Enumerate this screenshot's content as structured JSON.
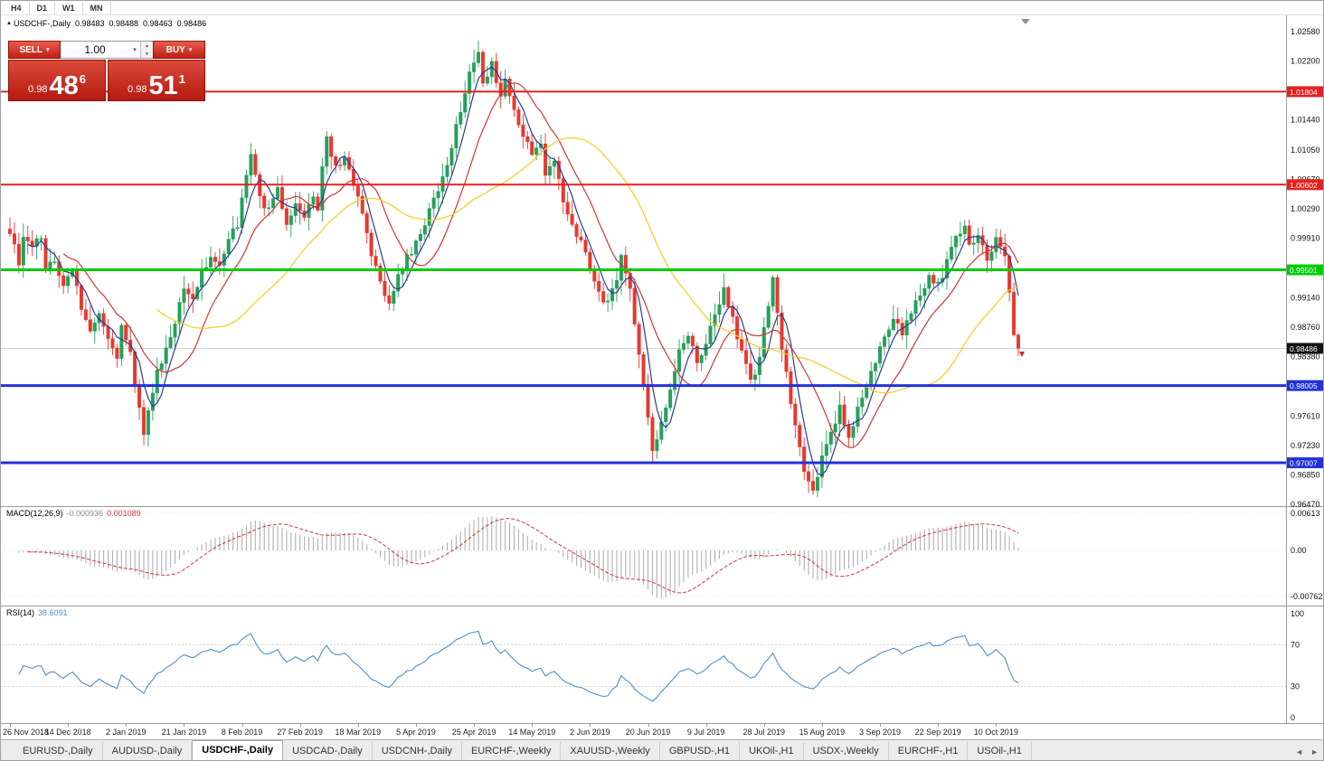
{
  "window": {
    "title": "USDCHF-,Daily"
  },
  "toolbar": {
    "timeframes": [
      "H4",
      "D1",
      "W1",
      "MN"
    ]
  },
  "chart_header": {
    "collapse_icon": "▲",
    "symbol": "USDCHF-,Daily",
    "open": "0.98483",
    "high": "0.98488",
    "low": "0.98463",
    "close": "0.98486"
  },
  "trade_panel": {
    "sell_label": "SELL",
    "buy_label": "BUY",
    "volume": "1.00",
    "sell_price_small": "0.98",
    "sell_price_big": "48",
    "sell_price_sup": "6",
    "buy_price_small": "0.98",
    "buy_price_big": "51",
    "buy_price_sup": "1"
  },
  "price_axis": {
    "ticks": [
      "1.02580",
      "1.02200",
      "1.01440",
      "1.01050",
      "1.00670",
      "1.00290",
      "0.99910",
      "0.99140",
      "0.98760",
      "0.98380",
      "0.97610",
      "0.97230",
      "0.96850",
      "0.96470"
    ]
  },
  "hlines": [
    {
      "label": "1.01804",
      "value": 1.01804,
      "color": "#e52121",
      "width": 2
    },
    {
      "label": "1.00602",
      "value": 1.00602,
      "color": "#e52121",
      "width": 2
    },
    {
      "label": "0.99501",
      "value": 0.99501,
      "color": "#00cc00",
      "width": 3
    },
    {
      "label": "0.98005",
      "value": 0.98005,
      "color": "#2231d8",
      "width": 3
    },
    {
      "label": "0.97007",
      "value": 0.97007,
      "color": "#2231d8",
      "width": 3
    }
  ],
  "current_price": {
    "label": "0.98486",
    "value": 0.98486,
    "bg": "#111111"
  },
  "macd_pane": {
    "label": "MACD(12,26,9)",
    "value1": "-0.000936",
    "value2": "0.001089",
    "axis": [
      "0.00613",
      "0.00",
      "-0.00762"
    ]
  },
  "rsi_pane": {
    "label": "RSI(14)",
    "value": "38.6091",
    "axis": [
      "100",
      "70",
      "30",
      "0"
    ],
    "levels": [
      70,
      30
    ]
  },
  "date_axis": {
    "labels": [
      "26 Nov 2018",
      "14 Dec 2018",
      "2 Jan 2019",
      "21 Jan 2019",
      "8 Feb 2019",
      "27 Feb 2019",
      "18 Mar 2019",
      "5 Apr 2019",
      "25 Apr 2019",
      "14 May 2019",
      "2 Jun 2019",
      "20 Jun 2019",
      "9 Jul 2019",
      "28 Jul 2019",
      "15 Aug 2019",
      "3 Sep 2019",
      "22 Sep 2019",
      "10 Oct 2019"
    ]
  },
  "tabs": {
    "items": [
      "EURUSD-,Daily",
      "AUDUSD-,Daily",
      "USDCHF-,Daily",
      "USDCAD-,Daily",
      "USDCNH-,Daily",
      "EURCHF-,Weekly",
      "XAUUSD-,Weekly",
      "GBPUSD-,H1",
      "UKOil-,H1",
      "USDX-,Weekly",
      "EURCHF-,H1",
      "USOil-,H1"
    ],
    "active_index": 2
  },
  "chart_data": {
    "type": "candlestick",
    "symbol": "USDCHF",
    "timeframe": "Daily",
    "title": "USDCHF-,Daily",
    "bar_count": 227,
    "y_range": [
      0.9647,
      1.0258
    ],
    "last_close": 0.98486,
    "anchors": [
      [
        0,
        0.9993
      ],
      [
        2,
        0.9962
      ],
      [
        3,
        0.999
      ],
      [
        5,
        0.9975
      ],
      [
        7,
        0.9996
      ],
      [
        8,
        0.995
      ],
      [
        10,
        0.9966
      ],
      [
        12,
        0.9928
      ],
      [
        14,
        0.995
      ],
      [
        16,
        0.9902
      ],
      [
        18,
        0.987
      ],
      [
        20,
        0.9898
      ],
      [
        22,
        0.9856
      ],
      [
        24,
        0.9836
      ],
      [
        25,
        0.9874
      ],
      [
        27,
        0.9846
      ],
      [
        28,
        0.98
      ],
      [
        30,
        0.9742
      ],
      [
        31,
        0.9765
      ],
      [
        33,
        0.9815
      ],
      [
        35,
        0.985
      ],
      [
        37,
        0.9882
      ],
      [
        39,
        0.993
      ],
      [
        41,
        0.9908
      ],
      [
        43,
        0.9946
      ],
      [
        45,
        0.997
      ],
      [
        47,
        0.9952
      ],
      [
        49,
        0.999
      ],
      [
        51,
        1.001
      ],
      [
        53,
        1.0068
      ],
      [
        54,
        1.0098
      ],
      [
        56,
        1.0042
      ],
      [
        58,
        1.0028
      ],
      [
        60,
        1.0055
      ],
      [
        62,
        1.0008
      ],
      [
        64,
        1.003
      ],
      [
        66,
        1.0018
      ],
      [
        68,
        1.005
      ],
      [
        69,
        1.0032
      ],
      [
        70,
        1.0088
      ],
      [
        71,
        1.0122
      ],
      [
        73,
        1.008
      ],
      [
        75,
        1.0096
      ],
      [
        77,
        1.006
      ],
      [
        79,
        1.0025
      ],
      [
        81,
        0.9972
      ],
      [
        83,
        0.9932
      ],
      [
        85,
        0.9912
      ],
      [
        87,
        0.9942
      ],
      [
        89,
        0.9965
      ],
      [
        91,
        0.9982
      ],
      [
        93,
        1.0012
      ],
      [
        95,
        1.0038
      ],
      [
        97,
        1.0068
      ],
      [
        99,
        1.0108
      ],
      [
        101,
        1.0158
      ],
      [
        103,
        1.0208
      ],
      [
        105,
        1.0228
      ],
      [
        106,
        1.0192
      ],
      [
        108,
        1.0218
      ],
      [
        110,
        1.017
      ],
      [
        111,
        1.0195
      ],
      [
        113,
        1.0158
      ],
      [
        115,
        1.0128
      ],
      [
        117,
        1.0102
      ],
      [
        119,
        1.0115
      ],
      [
        120,
        1.0072
      ],
      [
        122,
        1.0085
      ],
      [
        124,
        1.0042
      ],
      [
        126,
        1.0008
      ],
      [
        128,
        0.9988
      ],
      [
        130,
        0.9952
      ],
      [
        132,
        0.992
      ],
      [
        134,
        0.9905
      ],
      [
        136,
        0.9942
      ],
      [
        137,
        0.9968
      ],
      [
        139,
        0.9922
      ],
      [
        141,
        0.9842
      ],
      [
        143,
        0.9758
      ],
      [
        144,
        0.9712
      ],
      [
        146,
        0.975
      ],
      [
        148,
        0.9792
      ],
      [
        150,
        0.9842
      ],
      [
        152,
        0.9862
      ],
      [
        154,
        0.9832
      ],
      [
        156,
        0.9858
      ],
      [
        158,
        0.989
      ],
      [
        160,
        0.9922
      ],
      [
        162,
        0.9884
      ],
      [
        164,
        0.9848
      ],
      [
        166,
        0.9804
      ],
      [
        168,
        0.9836
      ],
      [
        170,
        0.9905
      ],
      [
        171,
        0.9942
      ],
      [
        172,
        0.989
      ],
      [
        174,
        0.9814
      ],
      [
        176,
        0.9745
      ],
      [
        178,
        0.969
      ],
      [
        180,
        0.9668
      ],
      [
        182,
        0.9706
      ],
      [
        184,
        0.974
      ],
      [
        186,
        0.977
      ],
      [
        188,
        0.973
      ],
      [
        190,
        0.977
      ],
      [
        192,
        0.9802
      ],
      [
        194,
        0.9834
      ],
      [
        196,
        0.986
      ],
      [
        198,
        0.989
      ],
      [
        200,
        0.987
      ],
      [
        202,
        0.9896
      ],
      [
        204,
        0.992
      ],
      [
        206,
        0.994
      ],
      [
        208,
        0.993
      ],
      [
        210,
        0.996
      ],
      [
        212,
        0.9988
      ],
      [
        214,
        1.0012
      ],
      [
        215,
        0.998
      ],
      [
        217,
        0.9994
      ],
      [
        219,
        0.9964
      ],
      [
        221,
        0.9988
      ],
      [
        223,
        0.9972
      ],
      [
        224,
        0.9922
      ],
      [
        225,
        0.9872
      ],
      [
        226,
        0.98486
      ]
    ],
    "moving_averages": [
      {
        "period": 5,
        "color": "#2b3a9e"
      },
      {
        "period": 13,
        "color": "#d43535"
      },
      {
        "period": 34,
        "color": "#efcf1c"
      }
    ],
    "macd": {
      "fast": 12,
      "slow": 26,
      "signal": 9
    },
    "rsi": {
      "period": 14
    },
    "colors": {
      "up": "#27a05a",
      "down": "#e6392f",
      "macd_hist": "#b0b0b0",
      "macd_signal": "#d43535",
      "rsi_line": "#4e8fc7",
      "bid_line": "#cccccc",
      "axis_line": "#9b9b9b",
      "marker": "#e02020",
      "shift_marker": "#909090"
    }
  }
}
